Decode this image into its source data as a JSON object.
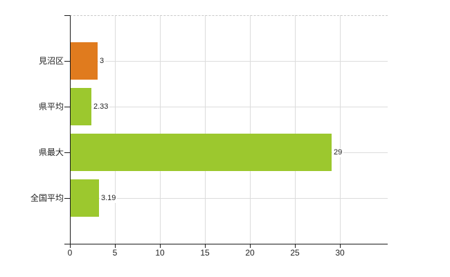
{
  "chart_data": {
    "type": "bar",
    "orientation": "horizontal",
    "title": "",
    "xlabel": "",
    "ylabel": "",
    "categories": [
      "見沼区",
      "県平均",
      "県最大",
      "全国平均"
    ],
    "values": [
      3,
      2.33,
      29,
      3.19
    ],
    "value_labels": [
      "3",
      "2.33",
      "29",
      "3.19"
    ],
    "bar_colors": [
      "#e07b1e",
      "#9cc82e",
      "#9cc82e",
      "#9cc82e"
    ],
    "x_ticks": [
      0,
      5,
      10,
      15,
      20,
      25,
      30
    ],
    "xlim": [
      0,
      35.3
    ],
    "grid": true,
    "legend": "none"
  },
  "colors": {
    "bar_orange": "#e07b1e",
    "bar_green": "#9cc82e",
    "gridline": "#dcdcdc",
    "plot_top_border": "#c9c9c9",
    "axis": "#1a1a1a",
    "text": "#222222",
    "background": "#ffffff"
  }
}
